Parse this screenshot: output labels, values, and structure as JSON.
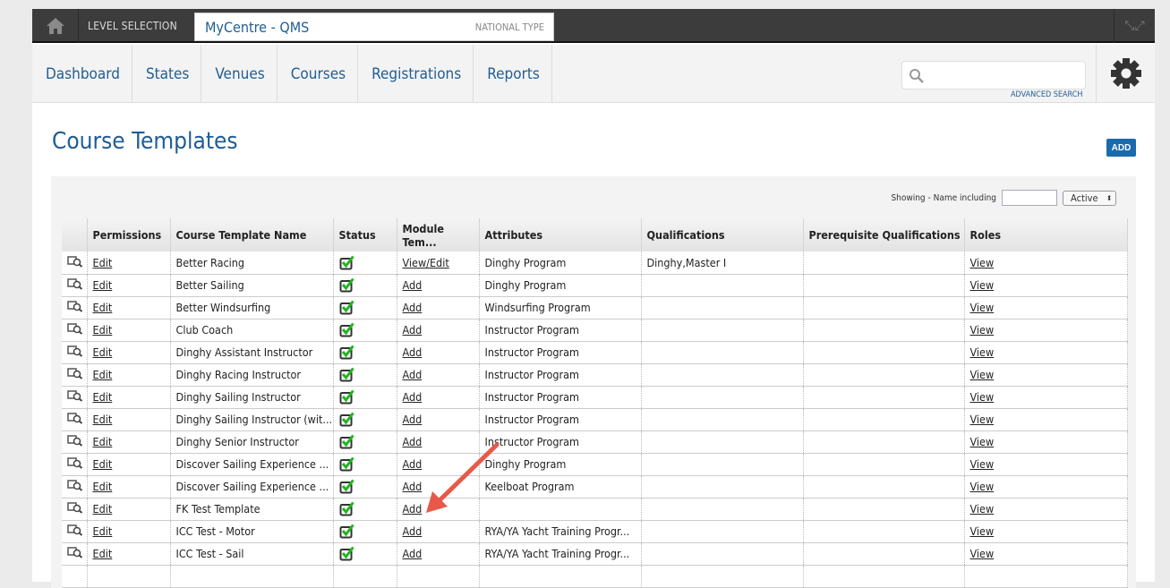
{
  "topbar": {
    "level_label": "LEVEL SELECTION",
    "centre_name": "MyCentre - QMS",
    "centre_type": "NATIONAL TYPE"
  },
  "nav": {
    "items": [
      "Dashboard",
      "States",
      "Venues",
      "Courses",
      "Registrations",
      "Reports"
    ],
    "advanced_search": "ADVANCED SEARCH",
    "search_placeholder": ""
  },
  "page": {
    "title": "Course Templates",
    "add_label": "ADD"
  },
  "filter": {
    "label": "Showing - Name including",
    "value": "",
    "status": "Active"
  },
  "table": {
    "headers": [
      "",
      "Permissions",
      "Course Template Name",
      "Status",
      "Module Tem...",
      "Attributes",
      "Qualifications",
      "Prerequisite Qualifications",
      "Roles"
    ],
    "rows": [
      {
        "perm": "Edit",
        "name": "Better Racing",
        "module": "View/Edit",
        "attr": "Dinghy Program",
        "qual": "Dinghy,Master I",
        "prereq": "",
        "roles": "View"
      },
      {
        "perm": "Edit",
        "name": "Better Sailing",
        "module": "Add",
        "attr": "Dinghy Program",
        "qual": "",
        "prereq": "",
        "roles": "View"
      },
      {
        "perm": "Edit",
        "name": "Better Windsurfing",
        "module": "Add",
        "attr": "Windsurfing Program",
        "qual": "",
        "prereq": "",
        "roles": "View"
      },
      {
        "perm": "Edit",
        "name": "Club Coach",
        "module": "Add",
        "attr": "Instructor Program",
        "qual": "",
        "prereq": "",
        "roles": "View"
      },
      {
        "perm": "Edit",
        "name": "Dinghy Assistant Instructor",
        "module": "Add",
        "attr": "Instructor Program",
        "qual": "",
        "prereq": "",
        "roles": "View"
      },
      {
        "perm": "Edit",
        "name": "Dinghy Racing Instructor",
        "module": "Add",
        "attr": "Instructor Program",
        "qual": "",
        "prereq": "",
        "roles": "View"
      },
      {
        "perm": "Edit",
        "name": "Dinghy Sailing Instructor",
        "module": "Add",
        "attr": "Instructor Program",
        "qual": "",
        "prereq": "",
        "roles": "View"
      },
      {
        "perm": "Edit",
        "name": "Dinghy Sailing Instructor (wit...",
        "module": "Add",
        "attr": "Instructor Program",
        "qual": "",
        "prereq": "",
        "roles": "View"
      },
      {
        "perm": "Edit",
        "name": "Dinghy Senior Instructor",
        "module": "Add",
        "attr": "Instructor Program",
        "qual": "",
        "prereq": "",
        "roles": "View"
      },
      {
        "perm": "Edit",
        "name": "Discover Sailing Experience ...",
        "module": "Add",
        "attr": "Dinghy Program",
        "qual": "",
        "prereq": "",
        "roles": "View"
      },
      {
        "perm": "Edit",
        "name": "Discover Sailing Experience ...",
        "module": "Add",
        "attr": "Keelboat Program",
        "qual": "",
        "prereq": "",
        "roles": "View"
      },
      {
        "perm": "Edit",
        "name": "FK Test Template",
        "module": "Add",
        "attr": "",
        "qual": "",
        "prereq": "",
        "roles": "View"
      },
      {
        "perm": "Edit",
        "name": "ICC Test - Motor",
        "module": "Add",
        "attr": "RYA/YA Yacht Training Progr...",
        "qual": "",
        "prereq": "",
        "roles": "View"
      },
      {
        "perm": "Edit",
        "name": "ICC Test - Sail",
        "module": "Add",
        "attr": "RYA/YA Yacht Training Progr...",
        "qual": "",
        "prereq": "",
        "roles": "View"
      },
      {
        "perm": "",
        "name": "",
        "module": "",
        "attr": "",
        "qual": "",
        "prereq": "",
        "roles": ""
      }
    ]
  },
  "colors": {
    "brand": "#1f5d95",
    "add_button": "#1a6bae",
    "check": "#22b522",
    "annotation_arrow": "#e8594a"
  }
}
